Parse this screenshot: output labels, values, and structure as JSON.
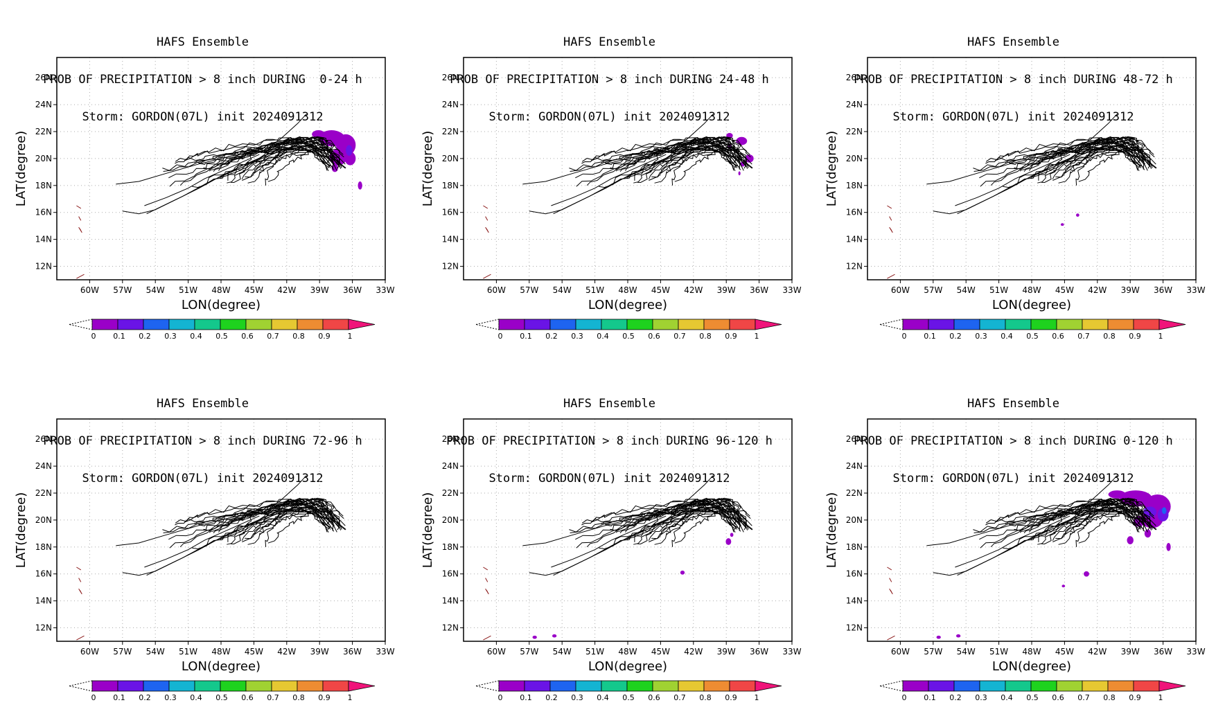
{
  "figure": {
    "model": "HAFS Ensemble",
    "storm_line": "Storm: GORDON(07L) init 2024091312",
    "ylabel": "LAT(degree)",
    "xlabel": "LON(degree)",
    "x_ticks": [
      "60W",
      "57W",
      "54W",
      "51W",
      "48W",
      "45W",
      "42W",
      "39W",
      "36W",
      "33W"
    ],
    "y_ticks": [
      "12N",
      "14N",
      "16N",
      "18N",
      "20N",
      "22N",
      "24N",
      "26N"
    ],
    "colorbar": {
      "labels": [
        "0",
        "0.1",
        "0.2",
        "0.3",
        "0.4",
        "0.5",
        "0.6",
        "0.7",
        "0.8",
        "0.9",
        "1"
      ],
      "colors": [
        "#9a00c8",
        "#6a14e6",
        "#1e64f0",
        "#14b4d2",
        "#14c88c",
        "#1ed21e",
        "#a0d232",
        "#e6c832",
        "#ee8c32",
        "#f04646"
      ],
      "over_color": "#f0147a"
    },
    "colors": {
      "track": "#000000",
      "coast": "#8b1a1a",
      "grid": "#aaaaaa",
      "prob_low": "#9a00c8",
      "prob_mid": "#6a14e6",
      "prob_blue": "#1e64f0"
    }
  },
  "panels": [
    {
      "subtitle": "PROB OF PRECIPITATION > 8 inch DURING  0-24 h",
      "blobs": [
        {
          "lon": -39.1,
          "lat": 21.8,
          "rx": 0.6,
          "ry": 0.3,
          "level": 1
        },
        {
          "lon": -37.9,
          "lat": 21.5,
          "rx": 1.2,
          "ry": 0.6,
          "level": 1
        },
        {
          "lon": -36.6,
          "lat": 21.0,
          "rx": 0.9,
          "ry": 0.8,
          "level": 1
        },
        {
          "lon": -37.3,
          "lat": 20.1,
          "rx": 0.8,
          "ry": 0.6,
          "level": 1
        },
        {
          "lon": -36.2,
          "lat": 20.0,
          "rx": 0.5,
          "ry": 0.5,
          "level": 1
        },
        {
          "lon": -36.3,
          "lat": 20.6,
          "rx": 0.3,
          "ry": 0.4,
          "level": 2
        },
        {
          "lon": -37.6,
          "lat": 19.3,
          "rx": 0.3,
          "ry": 0.3,
          "level": 1
        },
        {
          "lon": -35.3,
          "lat": 18.0,
          "rx": 0.2,
          "ry": 0.3,
          "level": 1
        }
      ]
    },
    {
      "subtitle": "PROB OF PRECIPITATION > 8 inch DURING 24-48 h",
      "blobs": [
        {
          "lon": -38.7,
          "lat": 21.7,
          "rx": 0.3,
          "ry": 0.2,
          "level": 1
        },
        {
          "lon": -37.6,
          "lat": 21.3,
          "rx": 0.5,
          "ry": 0.3,
          "level": 1
        },
        {
          "lon": -38.7,
          "lat": 20.9,
          "rx": 0.2,
          "ry": 0.2,
          "level": 1
        },
        {
          "lon": -36.9,
          "lat": 20.0,
          "rx": 0.4,
          "ry": 0.3,
          "level": 1
        },
        {
          "lon": -37.5,
          "lat": 19.6,
          "rx": 0.2,
          "ry": 0.2,
          "level": 1
        },
        {
          "lon": -37.8,
          "lat": 18.9,
          "rx": 0.1,
          "ry": 0.15,
          "level": 1
        }
      ]
    },
    {
      "subtitle": "PROB OF PRECIPITATION > 8 inch DURING 48-72 h",
      "blobs": [
        {
          "lon": -45.2,
          "lat": 15.1,
          "rx": 0.15,
          "ry": 0.1,
          "level": 1
        },
        {
          "lon": -43.8,
          "lat": 15.8,
          "rx": 0.15,
          "ry": 0.12,
          "level": 1
        }
      ]
    },
    {
      "subtitle": "PROB OF PRECIPITATION > 8 inch DURING 72-96 h",
      "blobs": []
    },
    {
      "subtitle": "PROB OF PRECIPITATION > 8 inch DURING 96-120 h",
      "blobs": [
        {
          "lon": -38.8,
          "lat": 18.4,
          "rx": 0.25,
          "ry": 0.25,
          "level": 1
        },
        {
          "lon": -38.5,
          "lat": 18.9,
          "rx": 0.15,
          "ry": 0.15,
          "level": 1
        },
        {
          "lon": -43.0,
          "lat": 16.1,
          "rx": 0.2,
          "ry": 0.15,
          "level": 1
        },
        {
          "lon": -56.5,
          "lat": 11.3,
          "rx": 0.2,
          "ry": 0.12,
          "level": 1
        },
        {
          "lon": -54.7,
          "lat": 11.4,
          "rx": 0.2,
          "ry": 0.12,
          "level": 1
        }
      ]
    },
    {
      "subtitle": "PROB OF PRECIPITATION > 8 inch DURING 0-120 h",
      "blobs": [
        {
          "lon": -40.2,
          "lat": 21.9,
          "rx": 0.8,
          "ry": 0.3,
          "level": 1
        },
        {
          "lon": -38.5,
          "lat": 21.6,
          "rx": 1.5,
          "ry": 0.6,
          "level": 1
        },
        {
          "lon": -36.5,
          "lat": 21.0,
          "rx": 1.2,
          "ry": 0.9,
          "level": 1
        },
        {
          "lon": -37.0,
          "lat": 20.1,
          "rx": 1.0,
          "ry": 0.7,
          "level": 1
        },
        {
          "lon": -36.0,
          "lat": 20.4,
          "rx": 0.5,
          "ry": 0.5,
          "level": 2
        },
        {
          "lon": -37.2,
          "lat": 20.6,
          "rx": 0.6,
          "ry": 0.4,
          "level": 2
        },
        {
          "lon": -35.9,
          "lat": 20.7,
          "rx": 0.2,
          "ry": 0.25,
          "level": 3
        },
        {
          "lon": -38.2,
          "lat": 19.9,
          "rx": 0.5,
          "ry": 0.4,
          "level": 1
        },
        {
          "lon": -37.4,
          "lat": 19.0,
          "rx": 0.3,
          "ry": 0.3,
          "level": 1
        },
        {
          "lon": -39.0,
          "lat": 18.5,
          "rx": 0.3,
          "ry": 0.3,
          "level": 1
        },
        {
          "lon": -35.5,
          "lat": 18.0,
          "rx": 0.2,
          "ry": 0.3,
          "level": 1
        },
        {
          "lon": -43.0,
          "lat": 16.0,
          "rx": 0.25,
          "ry": 0.2,
          "level": 1
        },
        {
          "lon": -45.1,
          "lat": 15.1,
          "rx": 0.15,
          "ry": 0.1,
          "level": 1
        },
        {
          "lon": -56.5,
          "lat": 11.3,
          "rx": 0.2,
          "ry": 0.12,
          "level": 1
        },
        {
          "lon": -54.7,
          "lat": 11.4,
          "rx": 0.2,
          "ry": 0.12,
          "level": 1
        }
      ]
    }
  ]
}
